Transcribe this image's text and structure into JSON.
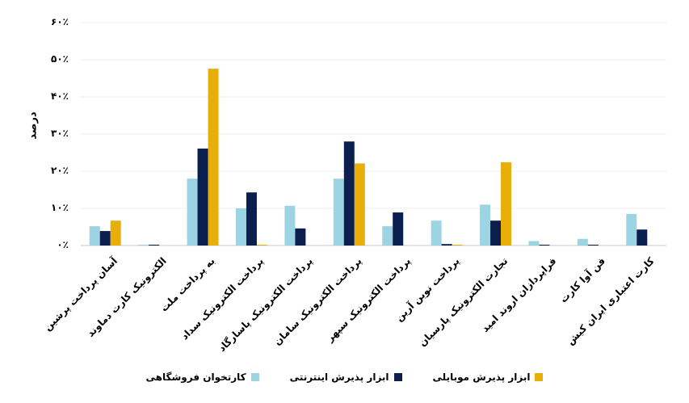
{
  "chart_data": {
    "type": "bar",
    "title": "",
    "xlabel": "",
    "ylabel": "درصد",
    "ylim": [
      0,
      60
    ],
    "yticks": [
      "۰٪",
      "۱۰٪",
      "۲۰٪",
      "۳۰٪",
      "۴۰٪",
      "۵۰٪",
      "۶۰٪"
    ],
    "grid": true,
    "legend_position": "bottom",
    "categories": [
      "آسان پرداخت پرشین",
      "الکترونیک کارت دماوند",
      "به پرداخت ملت",
      "پرداخت الکترونیک سداد",
      "پرداخت الکترونیک پاسارگاد",
      "پرداخت الکترونیک سامان",
      "پرداخت الکترونیک سپهر",
      "پرداخت نوین آرین",
      "تجارت الکترونیک پارسیان",
      "فراپردازان اروند امید",
      "فن آوا کارت",
      "کارت اعتباری ایران کیش"
    ],
    "series": [
      {
        "name": "کارتخوان فروشگاهی",
        "color": "#9dd4e3",
        "values": [
          5.2,
          0.1,
          18.0,
          10.0,
          10.7,
          18.0,
          5.2,
          6.7,
          11.0,
          1.2,
          1.8,
          8.5
        ]
      },
      {
        "name": "ابزار پذیرش اینترنتی",
        "color": "#0b1f4f",
        "values": [
          3.9,
          0.2,
          26.1,
          14.3,
          4.6,
          28.0,
          8.9,
          0.4,
          6.7,
          0.2,
          0.2,
          4.3
        ]
      },
      {
        "name": "ابزار پذیرش موبایلی",
        "color": "#e8ae0a",
        "values": [
          6.7,
          0.0,
          47.6,
          0.2,
          0.0,
          22.1,
          0.0,
          0.2,
          22.4,
          0.0,
          0.0,
          0.0
        ]
      }
    ]
  },
  "legend": [
    {
      "label": "ابزار پذیرش موبایلی",
      "color": "#e8ae0a"
    },
    {
      "label": "ابزار پذیرش اینترنتی",
      "color": "#0b1f4f"
    },
    {
      "label": "کارتخوان فروشگاهی",
      "color": "#9dd4e3"
    }
  ]
}
